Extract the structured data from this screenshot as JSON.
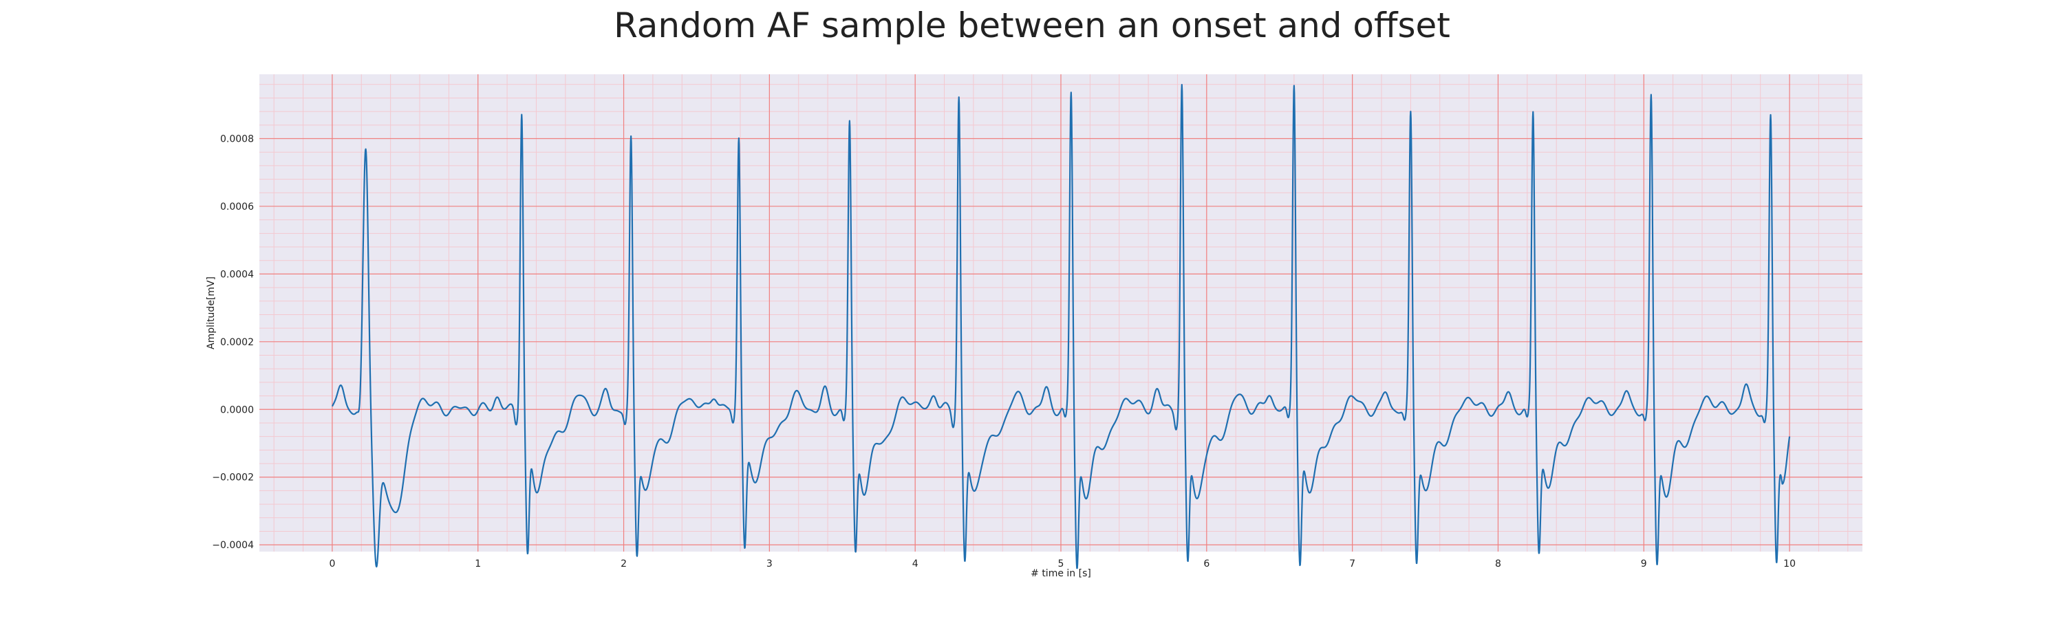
{
  "chart_data": {
    "type": "line",
    "title": "Random AF sample between an onset and offset",
    "xlabel": "# time in [s]",
    "ylabel": "Amplitude[mV]",
    "xlim": [
      -0.5,
      10.5
    ],
    "ylim": [
      -0.00042,
      0.00099
    ],
    "xticks": [
      0,
      1,
      2,
      3,
      4,
      5,
      6,
      7,
      8,
      9,
      10
    ],
    "xtick_labels": [
      "0",
      "1",
      "2",
      "3",
      "4",
      "5",
      "6",
      "7",
      "8",
      "9",
      "10"
    ],
    "yticks": [
      -0.0004,
      -0.0002,
      0.0,
      0.0002,
      0.0004,
      0.0006,
      0.0008
    ],
    "ytick_labels": [
      "−0.0004",
      "−0.0002",
      "0.0000",
      "0.0002",
      "0.0004",
      "0.0006",
      "0.0008"
    ],
    "grid": true,
    "minor_grid": true,
    "x_range": [
      0,
      10
    ],
    "beats": [
      {
        "t": 0.23,
        "peak": 0.00073,
        "trough": -0.00037,
        "p_wave": 7e-05
      },
      {
        "t": 1.3,
        "peak": 0.00086,
        "trough": -0.00036,
        "p_wave": 4e-05
      },
      {
        "t": 2.05,
        "peak": 0.00076,
        "trough": -0.00035,
        "p_wave": 5e-05
      },
      {
        "t": 2.79,
        "peak": 0.00078,
        "trough": -0.00033,
        "p_wave": 5e-05
      },
      {
        "t": 3.55,
        "peak": 0.00082,
        "trough": -0.00035,
        "p_wave": 5e-05
      },
      {
        "t": 4.3,
        "peak": 0.0009,
        "trough": -0.00037,
        "p_wave": 5e-05
      },
      {
        "t": 5.07,
        "peak": 0.00091,
        "trough": -0.00038,
        "p_wave": 6e-05
      },
      {
        "t": 5.83,
        "peak": 0.00093,
        "trough": -0.00038,
        "p_wave": 6e-05
      },
      {
        "t": 6.6,
        "peak": 0.00094,
        "trough": -0.00037,
        "p_wave": 5e-05
      },
      {
        "t": 7.4,
        "peak": 0.00084,
        "trough": -0.00036,
        "p_wave": 5e-05
      },
      {
        "t": 8.24,
        "peak": 0.00085,
        "trough": -0.00034,
        "p_wave": 5e-05
      },
      {
        "t": 9.05,
        "peak": 0.00089,
        "trough": -0.00037,
        "p_wave": 5e-05
      },
      {
        "t": 9.87,
        "peak": 0.00083,
        "trough": -0.00037,
        "p_wave": 7e-05
      }
    ],
    "end_value": -8e-05,
    "colors": {
      "line": "#1f6fb0",
      "plot_bg": "#eae8f2",
      "major_grid": "#f08080",
      "minor_grid": "#f4c8d0"
    }
  }
}
